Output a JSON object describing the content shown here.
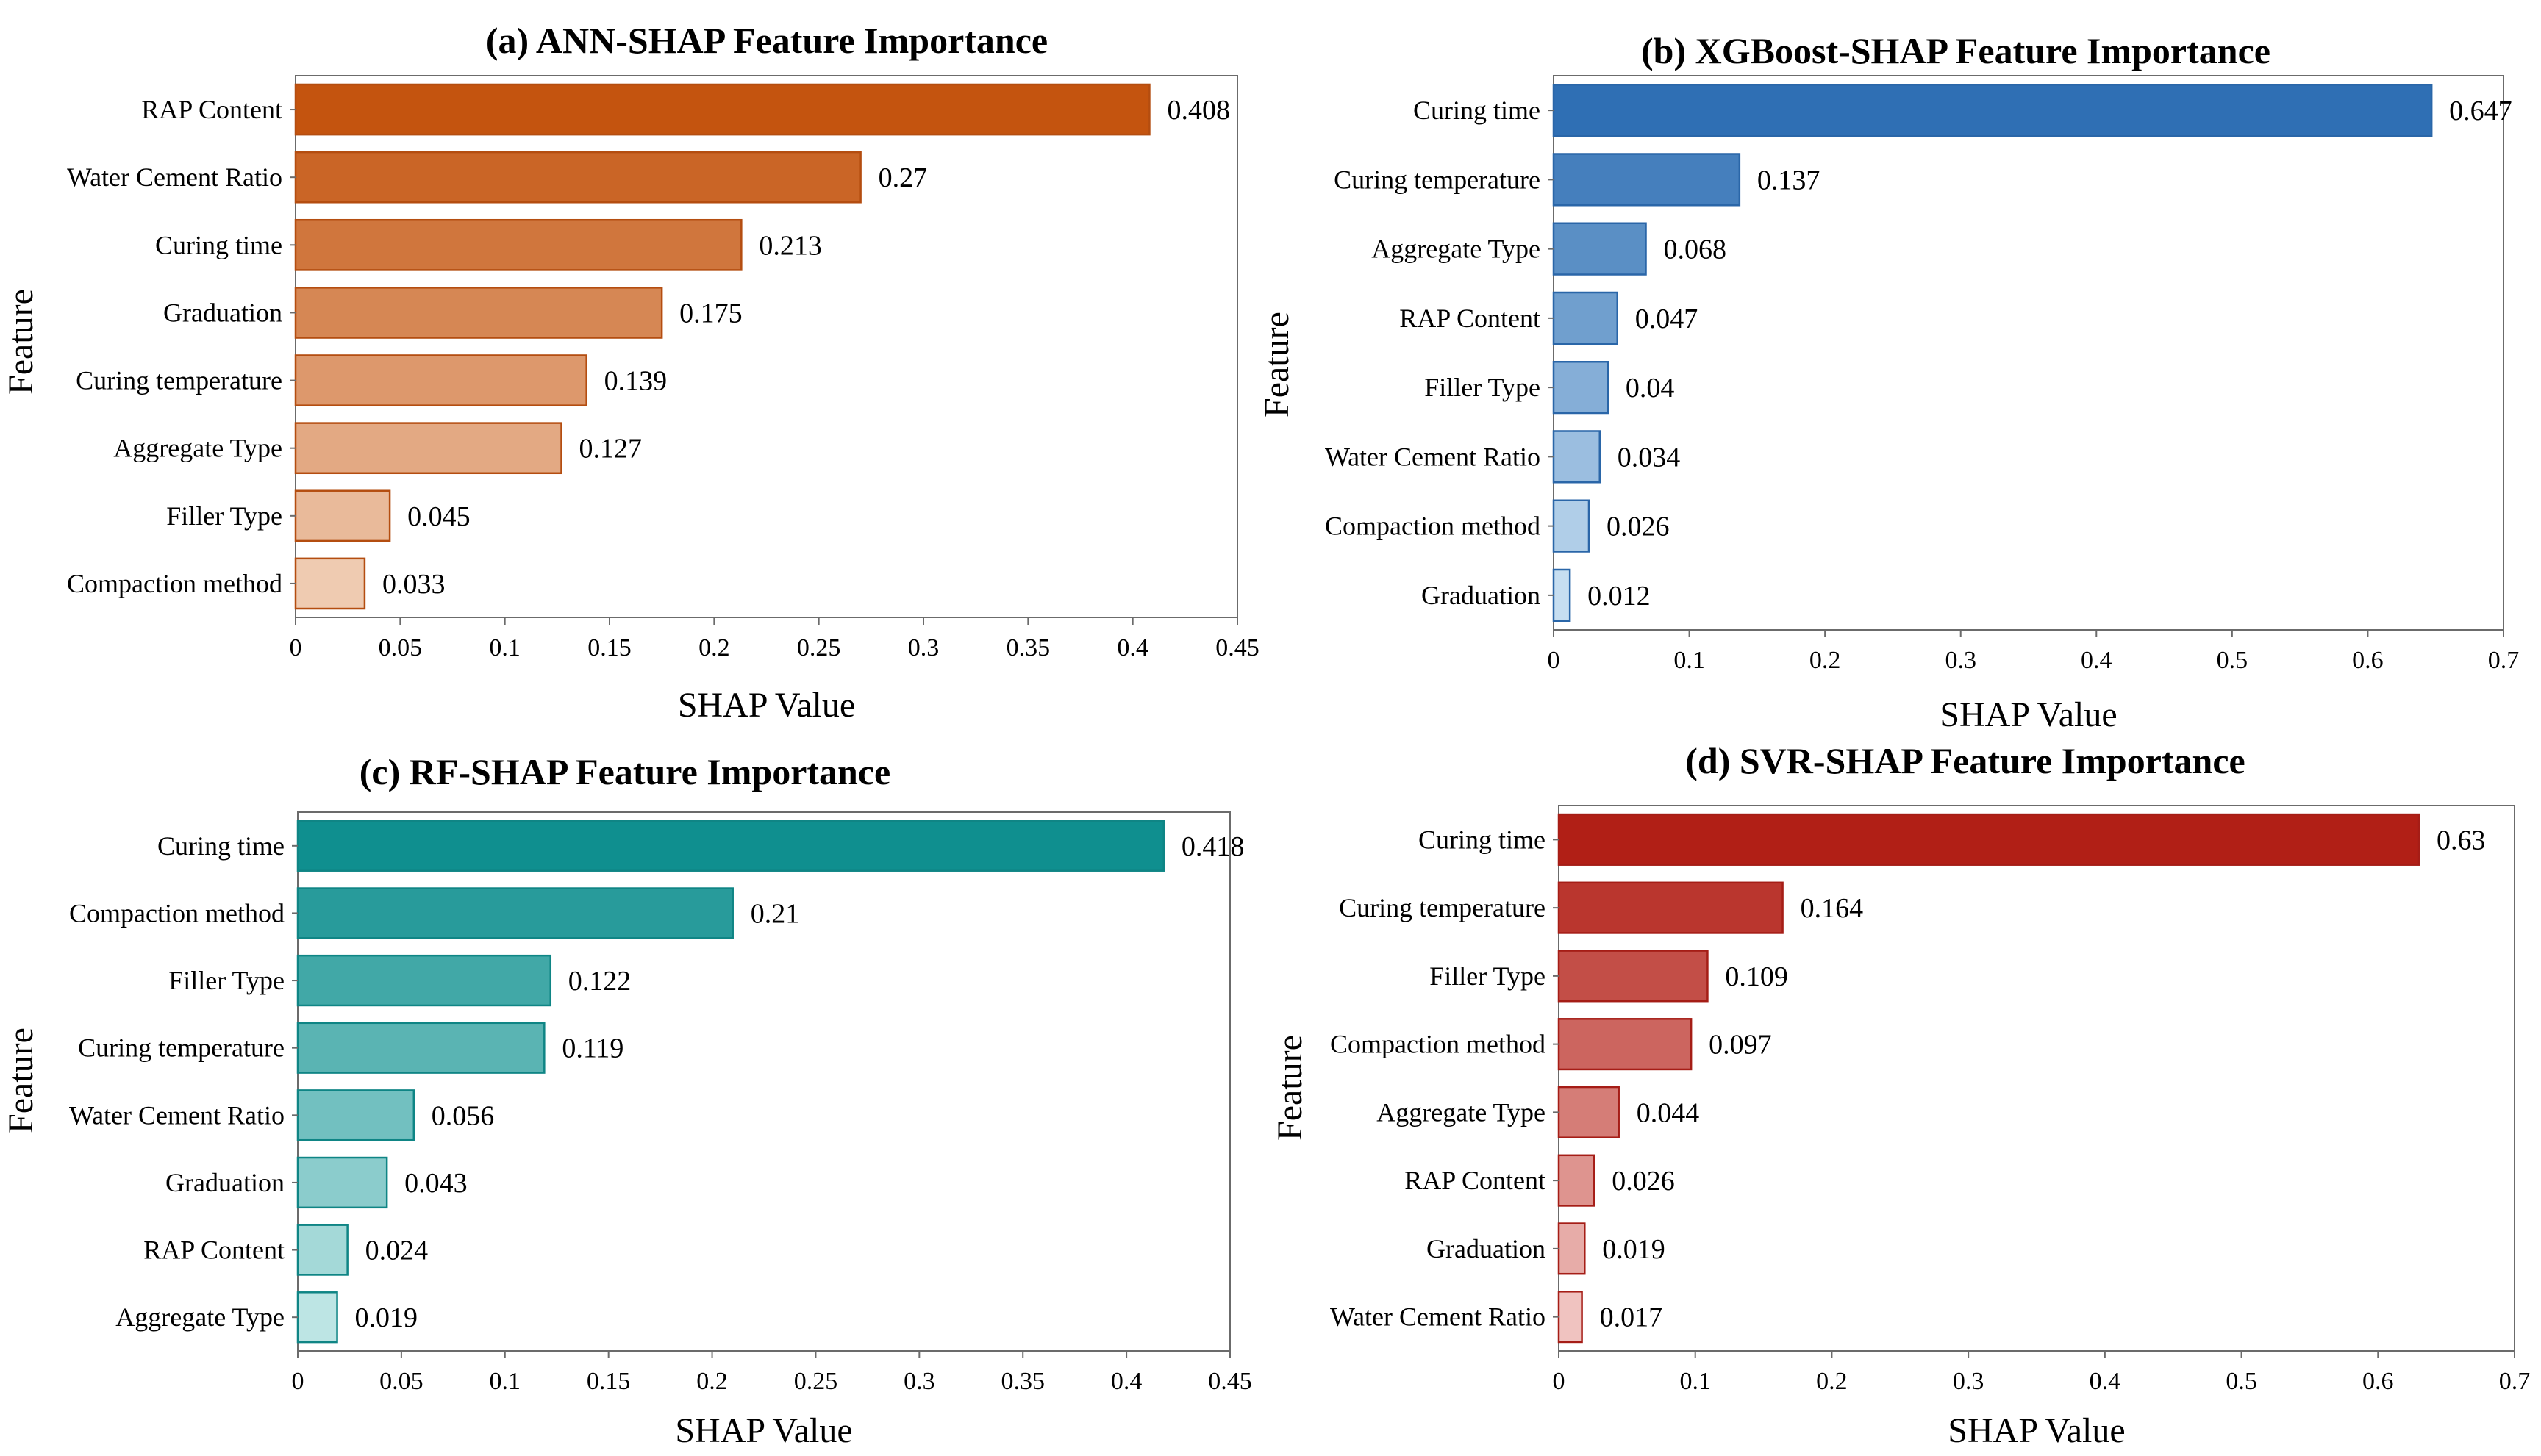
{
  "chart_data": [
    {
      "type": "bar",
      "orientation": "horizontal",
      "title": "(a) ANN-SHAP Feature Importance",
      "xlabel": "SHAP Value",
      "ylabel": "Feature",
      "xlim": [
        0,
        0.45
      ],
      "xticks": [
        "0",
        "0.05",
        "0.1",
        "0.15",
        "0.2",
        "0.25",
        "0.3",
        "0.35",
        "0.4",
        "0.45"
      ],
      "categories": [
        "RAP Content",
        "Water Cement Ratio",
        "Curing time",
        "Graduation",
        "Curing temperature",
        "Aggregate Type",
        "Filler Type",
        "Compaction method"
      ],
      "values": [
        0.408,
        0.27,
        0.213,
        0.175,
        0.139,
        0.127,
        0.045,
        0.033
      ],
      "value_labels": [
        "0.408",
        "0.27",
        "0.213",
        "0.175",
        "0.139",
        "0.127",
        "0.045",
        "0.033"
      ],
      "colors": {
        "dark": "#c4540f",
        "light": "#efcbb1",
        "edge": "#b44d10"
      }
    },
    {
      "type": "bar",
      "orientation": "horizontal",
      "title": "(b) XGBoost-SHAP Feature Importance",
      "xlabel": "SHAP Value",
      "ylabel": "Feature",
      "xlim": [
        0,
        0.7
      ],
      "xticks": [
        "0",
        "0.1",
        "0.2",
        "0.3",
        "0.4",
        "0.5",
        "0.6",
        "0.7"
      ],
      "categories": [
        "Curing time",
        "Curing temperature",
        "Aggregate Type",
        "RAP Content",
        "Filler Type",
        "Water Cement Ratio",
        "Compaction method",
        "Graduation"
      ],
      "values": [
        0.647,
        0.137,
        0.068,
        0.047,
        0.04,
        0.034,
        0.026,
        0.012
      ],
      "value_labels": [
        "0.647",
        "0.137",
        "0.068",
        "0.047",
        "0.04",
        "0.034",
        "0.026",
        "0.012"
      ],
      "colors": {
        "dark": "#2f6fb4",
        "light": "#c6def1",
        "edge": "#2a66a8"
      }
    },
    {
      "type": "bar",
      "orientation": "horizontal",
      "title": "(c) RF-SHAP Feature Importance",
      "xlabel": "SHAP Value",
      "ylabel": "Feature",
      "xlim": [
        0,
        0.45
      ],
      "xticks": [
        "0",
        "0.05",
        "0.1",
        "0.15",
        "0.2",
        "0.25",
        "0.3",
        "0.35",
        "0.4",
        "0.45"
      ],
      "categories": [
        "Curing time",
        "Compaction method",
        "Filler Type",
        "Curing temperature",
        "Water Cement Ratio",
        "Graduation",
        "RAP Content",
        "Aggregate Type"
      ],
      "values": [
        0.418,
        0.21,
        0.122,
        0.119,
        0.056,
        0.043,
        0.024,
        0.019
      ],
      "value_labels": [
        "0.418",
        "0.21",
        "0.122",
        "0.119",
        "0.056",
        "0.043",
        "0.024",
        "0.019"
      ],
      "colors": {
        "dark": "#0f8f8f",
        "light": "#bde5e4",
        "edge": "#0f8585"
      }
    },
    {
      "type": "bar",
      "orientation": "horizontal",
      "title": "(d) SVR-SHAP Feature Importance",
      "xlabel": "SHAP Value",
      "ylabel": "Feature",
      "xlim": [
        0,
        0.7
      ],
      "xticks": [
        "0",
        "0.1",
        "0.2",
        "0.3",
        "0.4",
        "0.5",
        "0.6",
        "0.7"
      ],
      "categories": [
        "Curing time",
        "Curing temperature",
        "Filler Type",
        "Compaction method",
        "Aggregate Type",
        "RAP Content",
        "Graduation",
        "Water Cement Ratio"
      ],
      "values": [
        0.63,
        0.164,
        0.109,
        0.097,
        0.044,
        0.026,
        0.019,
        0.017
      ],
      "value_labels": [
        "0.63",
        "0.164",
        "0.109",
        "0.097",
        "0.044",
        "0.026",
        "0.019",
        "0.017"
      ],
      "colors": {
        "dark": "#b11f16",
        "light": "#f0c3c0",
        "edge": "#a51d16"
      }
    }
  ]
}
